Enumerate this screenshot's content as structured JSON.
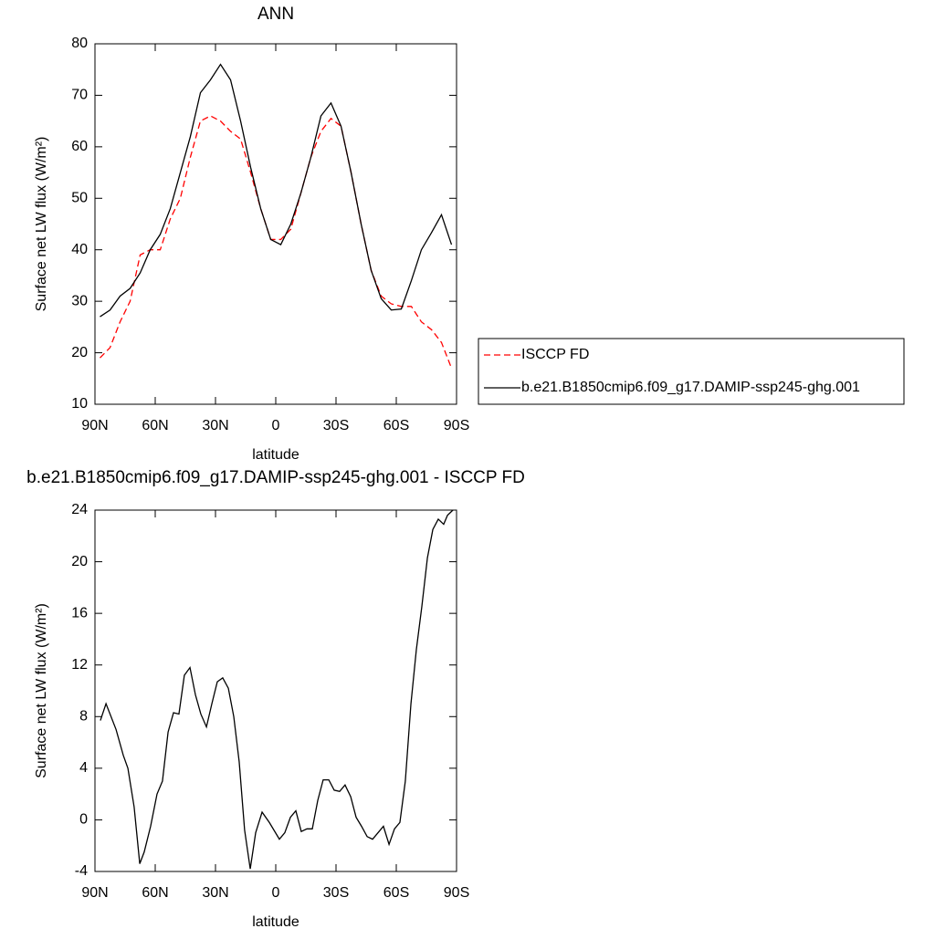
{
  "chart_data": [
    {
      "type": "line",
      "title": "ANN",
      "xlabel": "latitude",
      "ylabel": "Surface net LW flux (W/m²)",
      "x": [
        87.5,
        82.5,
        77.5,
        72.5,
        67.5,
        62.5,
        57.5,
        52.5,
        47.5,
        42.5,
        37.5,
        32.5,
        27.5,
        22.5,
        17.5,
        12.5,
        7.5,
        2.5,
        -2.5,
        -7.5,
        -12.5,
        -17.5,
        -22.5,
        -27.5,
        -32.5,
        -37.5,
        -42.5,
        -47.5,
        -52.5,
        -57.5,
        -62.5,
        -67.5,
        -72.5,
        -77.5,
        -82.5,
        -87.5
      ],
      "series": [
        {
          "name": "ISCCP FD",
          "color": "#ff0000",
          "line_style": "dashed",
          "values": [
            19,
            21,
            26,
            30,
            39,
            40,
            40,
            46,
            50,
            58,
            65,
            66,
            65,
            63,
            61.5,
            55,
            48,
            42,
            42,
            44,
            51,
            58,
            63,
            65.5,
            64,
            55,
            45,
            36,
            31,
            29.5,
            29,
            29,
            26,
            24.5,
            22,
            17
          ]
        },
        {
          "name": "b.e21.B1850cmip6.f09_g17.DAMIP-ssp245-ghg.001",
          "color": "#000000",
          "line_style": "solid",
          "values": [
            27,
            28.3,
            31,
            32.5,
            35.5,
            40,
            43,
            48,
            55,
            62,
            70.5,
            73,
            76,
            73,
            65,
            56,
            48,
            42,
            41,
            45,
            51,
            58,
            66,
            68.5,
            64,
            55,
            45,
            36,
            30.5,
            28.3,
            28.5,
            34,
            40,
            43.3,
            46.8,
            41
          ]
        }
      ],
      "xlim": [
        90,
        -90
      ],
      "xticks": [
        {
          "value": 90,
          "label": "90N"
        },
        {
          "value": 60,
          "label": "60N"
        },
        {
          "value": 30,
          "label": "30N"
        },
        0,
        {
          "value": -30,
          "label": "30S"
        },
        {
          "value": -60,
          "label": "60S"
        },
        {
          "value": -90,
          "label": "90S"
        }
      ],
      "ylim": [
        10,
        80
      ],
      "yticks": [
        10,
        20,
        30,
        40,
        50,
        60,
        70,
        80
      ],
      "legend": "right"
    },
    {
      "type": "line",
      "title": "b.e21.B1850cmip6.f09_g17.DAMIP-ssp245-ghg.001 - ISCCP FD",
      "xlabel": "latitude",
      "ylabel": "Surface net LW flux (W/m²)",
      "x": [
        87.3,
        84.5,
        79.5,
        75.9,
        73.6,
        70.5,
        67.7,
        65.5,
        62.3,
        59.1,
        56.4,
        53.6,
        50.9,
        48.2,
        45.5,
        42.7,
        40,
        37.3,
        34.5,
        31.8,
        29.1,
        26.4,
        23.6,
        20.9,
        18.2,
        15.5,
        12.7,
        10,
        6.8,
        3.2,
        -1.8,
        -4.5,
        -7.3,
        -10,
        -12.7,
        -15.5,
        -18.2,
        -20.9,
        -23.6,
        -26.4,
        -29.1,
        -31.8,
        -34.5,
        -37.3,
        -40,
        -42.7,
        -45.5,
        -48.2,
        -50.9,
        -53.6,
        -56.4,
        -59.1,
        -61.8,
        -64.5,
        -67.3,
        -70,
        -72.7,
        -75.5,
        -78.2,
        -80.9,
        -83.6,
        -85.5,
        -88.2
      ],
      "values": [
        7.7,
        9,
        7,
        5,
        4,
        1,
        -3.4,
        -2.5,
        -0.5,
        2,
        3,
        6.8,
        8.3,
        8.2,
        11.2,
        11.8,
        9.7,
        8.2,
        7.2,
        9,
        10.7,
        11,
        10.2,
        8,
        4.5,
        -0.8,
        -3.8,
        -1,
        0.6,
        -0.2,
        -1.5,
        -1,
        0.2,
        0.7,
        -0.9,
        -0.7,
        -0.7,
        1.5,
        3.1,
        3.1,
        2.3,
        2.2,
        2.7,
        1.8,
        0.2,
        -0.5,
        -1.3,
        -1.5,
        -1,
        -0.5,
        -1.9,
        -0.7,
        -0.2,
        3,
        9,
        13.2,
        16.5,
        20.3,
        22.5,
        23.3,
        22.9,
        23.6,
        24
      ],
      "color": "#000000",
      "xlim": [
        90,
        -90
      ],
      "xticks": [
        {
          "value": 90,
          "label": "90N"
        },
        {
          "value": 60,
          "label": "60N"
        },
        {
          "value": 30,
          "label": "30N"
        },
        0,
        {
          "value": -30,
          "label": "30S"
        },
        {
          "value": -60,
          "label": "60S"
        },
        {
          "value": -90,
          "label": "90S"
        }
      ],
      "ylim": [
        -4,
        24
      ],
      "yticks": [
        -4,
        0,
        4,
        8,
        12,
        16,
        20,
        24
      ]
    }
  ]
}
